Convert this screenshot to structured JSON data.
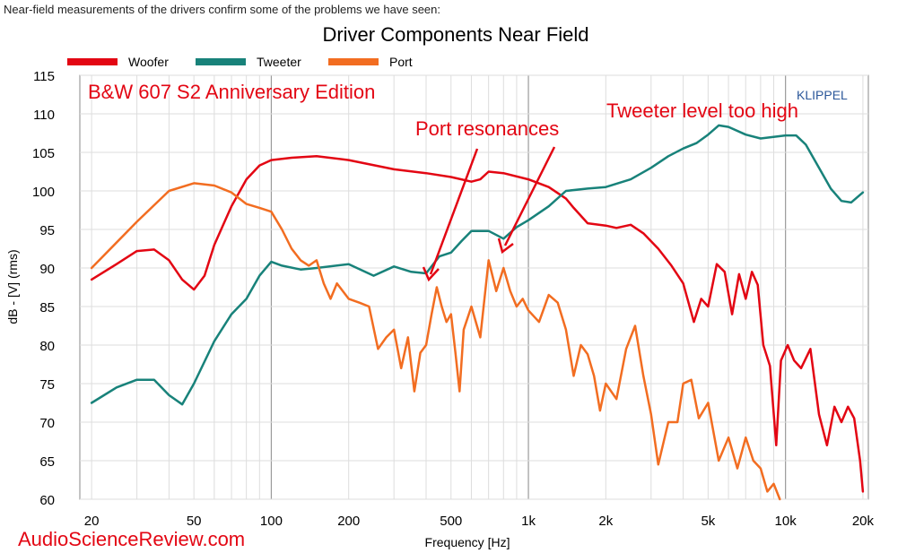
{
  "caption": "Near-field measurements of the drivers confirm some of the problems we have seen:",
  "chart_data": {
    "type": "line",
    "title": "Driver Components Near Field",
    "xlabel": "Frequency [Hz]",
    "ylabel": "dB - [V]  (rms)",
    "x_scale": "log",
    "xlim": [
      18,
      21000
    ],
    "ylim": [
      60,
      115
    ],
    "x_ticks": [
      20,
      50,
      100,
      200,
      500,
      1000,
      2000,
      5000,
      10000,
      20000
    ],
    "x_tick_labels": [
      "20",
      "50",
      "100",
      "200",
      "500",
      "1k",
      "2k",
      "5k",
      "10k",
      "20k"
    ],
    "y_ticks": [
      60,
      65,
      70,
      75,
      80,
      85,
      90,
      95,
      100,
      105,
      110,
      115
    ],
    "grid": true,
    "legend_position": "top-left",
    "series": [
      {
        "name": "Woofer",
        "color": "#e30613",
        "points": [
          [
            20,
            88.5
          ],
          [
            25,
            90.5
          ],
          [
            30,
            92.2
          ],
          [
            35,
            92.4
          ],
          [
            40,
            91
          ],
          [
            45,
            88.5
          ],
          [
            50,
            87.2
          ],
          [
            55,
            89
          ],
          [
            60,
            93
          ],
          [
            70,
            98
          ],
          [
            80,
            101.5
          ],
          [
            90,
            103.3
          ],
          [
            100,
            104
          ],
          [
            120,
            104.3
          ],
          [
            150,
            104.5
          ],
          [
            200,
            104
          ],
          [
            300,
            102.8
          ],
          [
            400,
            102.3
          ],
          [
            500,
            101.8
          ],
          [
            600,
            101.2
          ],
          [
            650,
            101.5
          ],
          [
            700,
            102.5
          ],
          [
            800,
            102.3
          ],
          [
            1000,
            101.5
          ],
          [
            1200,
            100.5
          ],
          [
            1400,
            99
          ],
          [
            1500,
            97.8
          ],
          [
            1700,
            95.8
          ],
          [
            2000,
            95.5
          ],
          [
            2200,
            95.2
          ],
          [
            2500,
            95.6
          ],
          [
            2800,
            94.5
          ],
          [
            3200,
            92.5
          ],
          [
            3600,
            90.3
          ],
          [
            4000,
            88
          ],
          [
            4400,
            83
          ],
          [
            4700,
            86
          ],
          [
            5000,
            85
          ],
          [
            5400,
            90.5
          ],
          [
            5800,
            89.5
          ],
          [
            6200,
            84
          ],
          [
            6600,
            89.2
          ],
          [
            7000,
            86
          ],
          [
            7400,
            89.5
          ],
          [
            7800,
            87.8
          ],
          [
            8200,
            80
          ],
          [
            8700,
            77.3
          ],
          [
            9200,
            67
          ],
          [
            9600,
            78
          ],
          [
            10200,
            80
          ],
          [
            10800,
            78
          ],
          [
            11500,
            77
          ],
          [
            12500,
            79.5
          ],
          [
            13500,
            71
          ],
          [
            14500,
            67
          ],
          [
            15500,
            72
          ],
          [
            16500,
            70
          ],
          [
            17500,
            72
          ],
          [
            18500,
            70.5
          ],
          [
            19500,
            65
          ],
          [
            20000,
            61
          ]
        ]
      },
      {
        "name": "Tweeter",
        "color": "#18827a",
        "points": [
          [
            20,
            72.5
          ],
          [
            25,
            74.5
          ],
          [
            30,
            75.5
          ],
          [
            35,
            75.5
          ],
          [
            40,
            73.5
          ],
          [
            45,
            72.3
          ],
          [
            50,
            75
          ],
          [
            60,
            80.5
          ],
          [
            70,
            84
          ],
          [
            80,
            86
          ],
          [
            90,
            89
          ],
          [
            100,
            90.8
          ],
          [
            110,
            90.3
          ],
          [
            130,
            89.8
          ],
          [
            150,
            90
          ],
          [
            200,
            90.5
          ],
          [
            250,
            89
          ],
          [
            300,
            90.2
          ],
          [
            350,
            89.5
          ],
          [
            400,
            89.3
          ],
          [
            450,
            91.5
          ],
          [
            500,
            92
          ],
          [
            550,
            93.5
          ],
          [
            600,
            94.8
          ],
          [
            700,
            94.8
          ],
          [
            800,
            93.8
          ],
          [
            900,
            95.3
          ],
          [
            1000,
            96.2
          ],
          [
            1200,
            98
          ],
          [
            1400,
            100
          ],
          [
            1700,
            100.3
          ],
          [
            2000,
            100.5
          ],
          [
            2500,
            101.5
          ],
          [
            3000,
            103
          ],
          [
            3500,
            104.5
          ],
          [
            4000,
            105.5
          ],
          [
            4500,
            106.2
          ],
          [
            5000,
            107.3
          ],
          [
            5500,
            108.5
          ],
          [
            6000,
            108.3
          ],
          [
            7000,
            107.3
          ],
          [
            8000,
            106.8
          ],
          [
            10000,
            107.2
          ],
          [
            11000,
            107.2
          ],
          [
            12000,
            106
          ],
          [
            13500,
            103
          ],
          [
            15000,
            100.3
          ],
          [
            16500,
            98.7
          ],
          [
            18000,
            98.5
          ],
          [
            20000,
            99.8
          ]
        ]
      },
      {
        "name": "Port",
        "color": "#f26d21",
        "points": [
          [
            20,
            90
          ],
          [
            30,
            96
          ],
          [
            40,
            100
          ],
          [
            50,
            101
          ],
          [
            60,
            100.7
          ],
          [
            70,
            99.8
          ],
          [
            80,
            98.3
          ],
          [
            90,
            97.8
          ],
          [
            100,
            97.3
          ],
          [
            110,
            95
          ],
          [
            120,
            92.5
          ],
          [
            130,
            91
          ],
          [
            140,
            90.3
          ],
          [
            150,
            91
          ],
          [
            160,
            88
          ],
          [
            170,
            86
          ],
          [
            180,
            88
          ],
          [
            200,
            86
          ],
          [
            220,
            85.5
          ],
          [
            240,
            85
          ],
          [
            260,
            79.5
          ],
          [
            280,
            81
          ],
          [
            300,
            82
          ],
          [
            320,
            77
          ],
          [
            340,
            81
          ],
          [
            360,
            74
          ],
          [
            380,
            79
          ],
          [
            400,
            80
          ],
          [
            420,
            84
          ],
          [
            440,
            87.5
          ],
          [
            460,
            85
          ],
          [
            480,
            83
          ],
          [
            500,
            84
          ],
          [
            520,
            79
          ],
          [
            540,
            74
          ],
          [
            560,
            82
          ],
          [
            600,
            85
          ],
          [
            650,
            81
          ],
          [
            700,
            91
          ],
          [
            750,
            87
          ],
          [
            800,
            90
          ],
          [
            850,
            87
          ],
          [
            900,
            85
          ],
          [
            950,
            86
          ],
          [
            1000,
            84.5
          ],
          [
            1100,
            83
          ],
          [
            1200,
            86.5
          ],
          [
            1300,
            85.5
          ],
          [
            1400,
            82
          ],
          [
            1500,
            76
          ],
          [
            1600,
            80
          ],
          [
            1700,
            78.8
          ],
          [
            1800,
            76
          ],
          [
            1900,
            71.5
          ],
          [
            2000,
            75
          ],
          [
            2200,
            73
          ],
          [
            2400,
            79.5
          ],
          [
            2600,
            82.5
          ],
          [
            2800,
            76
          ],
          [
            3000,
            71
          ],
          [
            3200,
            64.5
          ],
          [
            3500,
            70
          ],
          [
            3800,
            70
          ],
          [
            4000,
            75
          ],
          [
            4300,
            75.5
          ],
          [
            4600,
            70.5
          ],
          [
            5000,
            72.5
          ],
          [
            5500,
            65
          ],
          [
            6000,
            68
          ],
          [
            6500,
            64
          ],
          [
            7000,
            68
          ],
          [
            7500,
            65
          ],
          [
            8000,
            64
          ],
          [
            8500,
            61
          ],
          [
            9000,
            62
          ],
          [
            9500,
            60
          ]
        ]
      }
    ],
    "annotations": [
      {
        "text": "B&W 607 S2 Anniversary Edition",
        "color": "#e30613"
      },
      {
        "text": "KLIPPEL",
        "color": "#2b579a"
      },
      {
        "text": "Port resonances",
        "color": "#e30613"
      },
      {
        "text": "Tweeter level too high",
        "color": "#e30613"
      },
      {
        "text": "AudioScienceReview.com",
        "color": "#e30613"
      }
    ]
  }
}
